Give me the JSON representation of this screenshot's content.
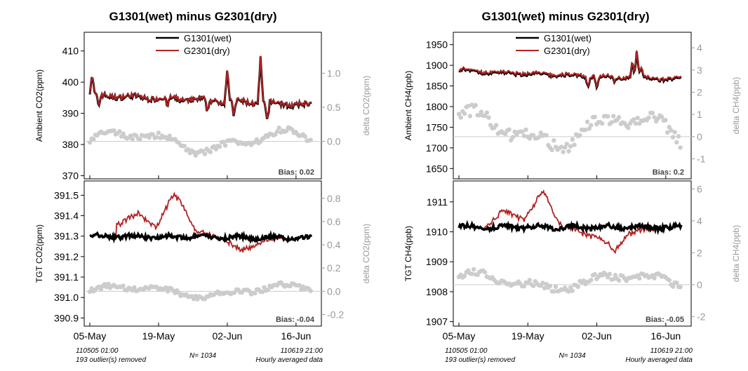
{
  "colors": {
    "wet": "#000000",
    "dry": "#b22222",
    "delta": "#cccccc",
    "zero_line": "#cccccc",
    "axis_right": "#999999",
    "axis_left": "#000000"
  },
  "x_axis": {
    "tick_labels": [
      "05-May",
      "19-May",
      "02-Jun",
      "16-Jun"
    ],
    "start_label": "110505 01:00",
    "end_label": "110619 21:00",
    "outliers_label": "193 outlier(s) removed",
    "n_label": "N= 1034",
    "averaging_label": "Hourly averaged data"
  },
  "figures": [
    {
      "title": "G1301(wet)  minus  G2301(dry)",
      "legend": {
        "wet": "G1301(wet)",
        "dry": "G2301(dry)"
      },
      "panels": [
        {
          "ylabel": "Ambient CO2(ppm)",
          "ylabel_right": "delta CO2(ppm)",
          "ylim": [
            369,
            416
          ],
          "yticks": [
            "370",
            "380",
            "390",
            "400",
            "410"
          ],
          "y2lim": [
            -0.55,
            1.6
          ],
          "y2ticks": [
            "0.0",
            "0.5",
            "1.0"
          ],
          "bias_label": "Bias: 0.02",
          "base": 395.8,
          "trend": -3.2,
          "noise": 0.8,
          "spikes": [
            [
              0.01,
              6.5
            ],
            [
              0.04,
              -4
            ],
            [
              0.35,
              -3
            ],
            [
              0.53,
              -4
            ],
            [
              0.62,
              11
            ],
            [
              0.65,
              -5
            ],
            [
              0.77,
              15
            ],
            [
              0.8,
              -6
            ]
          ],
          "dry_offset": 0.15,
          "dry_drift": [],
          "delta_base": 0.0,
          "delta_amp": 0.12,
          "delta_noise": 0.04
        },
        {
          "ylabel": "TGT CO2(ppm)",
          "ylabel_right": "delta CO2(ppm)",
          "ylim": [
            390.86,
            391.57
          ],
          "yticks": [
            "390.9",
            "391.0",
            "391.1",
            "391.2",
            "391.3",
            "391.4",
            "391.5"
          ],
          "y2lim": [
            -0.3,
            0.95
          ],
          "y2ticks": [
            "-0.2",
            "0.0",
            "0.2",
            "0.4",
            "0.6",
            "0.8"
          ],
          "bias_label": "Bias: -0.04",
          "base": 391.3,
          "trend": -0.01,
          "noise": 0.01,
          "spikes": [],
          "dry_offset": 0.0,
          "dry_drift": [
            [
              0.12,
              0.06
            ],
            [
              0.22,
              0.11
            ],
            [
              0.3,
              0.05
            ],
            [
              0.38,
              0.21
            ],
            [
              0.43,
              0.14
            ],
            [
              0.48,
              0.02
            ],
            [
              0.6,
              0.0
            ],
            [
              0.68,
              -0.07
            ],
            [
              0.76,
              -0.02
            ],
            [
              0.9,
              0.0
            ]
          ],
          "delta_base": 0.0,
          "delta_amp": 0.04,
          "delta_noise": 0.02
        }
      ]
    },
    {
      "title": "G1301(wet)  minus  G2301(dry)",
      "legend": {
        "wet": "G1301(wet)",
        "dry": "G2301(dry)"
      },
      "panels": [
        {
          "ylabel": "Ambient CH4(ppb)",
          "ylabel_right": "delta CH4(ppb)",
          "ylim": [
            1625,
            1980
          ],
          "yticks": [
            "1650",
            "1700",
            "1750",
            "1800",
            "1850",
            "1900",
            "1950"
          ],
          "y2lim": [
            -1.9,
            4.7
          ],
          "y2ticks": [
            "-1",
            "0",
            "1",
            "2",
            "3",
            "4"
          ],
          "bias_label": "Bias: 0.2",
          "base": 1885,
          "trend": -20,
          "noise": 4,
          "spikes": [
            [
              0.02,
              12
            ],
            [
              0.58,
              -25
            ],
            [
              0.62,
              -30
            ],
            [
              0.7,
              -12
            ],
            [
              0.78,
              40
            ],
            [
              0.8,
              65
            ],
            [
              0.82,
              25
            ]
          ],
          "dry_offset": 2,
          "dry_drift": [],
          "delta_base": 0.3,
          "delta_amp": 0.6,
          "delta_noise": 0.25
        },
        {
          "ylabel": "TGT CH4(ppb)",
          "ylabel_right": "delta CH4(ppb)",
          "ylim": [
            1906.85,
            1911.7
          ],
          "yticks": [
            "1907",
            "1908",
            "1909",
            "1910",
            "1911"
          ],
          "y2lim": [
            -2.6,
            6.5
          ],
          "y2ticks": [
            "-2",
            "0",
            "2",
            "4",
            "6"
          ],
          "bias_label": "Bias: -0.05",
          "base": 1910.15,
          "trend": 0.0,
          "noise": 0.08,
          "spikes": [],
          "dry_offset": 0.0,
          "dry_drift": [
            [
              0.1,
              0.0
            ],
            [
              0.2,
              0.5
            ],
            [
              0.3,
              0.3
            ],
            [
              0.38,
              1.2
            ],
            [
              0.42,
              0.6
            ],
            [
              0.47,
              0.0
            ],
            [
              0.62,
              -0.3
            ],
            [
              0.7,
              -0.8
            ],
            [
              0.76,
              -0.2
            ],
            [
              0.9,
              0.0
            ]
          ],
          "delta_base": 0.2,
          "delta_amp": 0.4,
          "delta_noise": 0.2
        }
      ]
    }
  ],
  "chart_data": [
    {
      "type": "line",
      "title": "G1301(wet)  minus  G2301(dry)",
      "panels": [
        {
          "ylabel": "Ambient CO2(ppm)",
          "ylabel_right": "delta CO2(ppm)",
          "series": [
            {
              "name": "G1301(wet)",
              "approx_level": 395
            },
            {
              "name": "G2301(dry)",
              "approx_level": 395
            }
          ],
          "bias": 0.02
        },
        {
          "ylabel": "TGT CO2(ppm)",
          "ylabel_right": "delta CO2(ppm)",
          "series": [
            {
              "name": "G1301(wet)",
              "approx_level": 391.3
            },
            {
              "name": "G2301(dry)",
              "approx_level": 391.3
            }
          ],
          "bias": -0.04
        }
      ]
    },
    {
      "type": "line",
      "title": "G1301(wet)  minus  G2301(dry)",
      "panels": [
        {
          "ylabel": "Ambient CH4(ppb)",
          "ylabel_right": "delta CH4(ppb)",
          "series": [
            {
              "name": "G1301(wet)",
              "approx_level": 1875
            },
            {
              "name": "G2301(dry)",
              "approx_level": 1875
            }
          ],
          "bias": 0.2
        },
        {
          "ylabel": "TGT CH4(ppb)",
          "ylabel_right": "delta CH4(ppb)",
          "series": [
            {
              "name": "G1301(wet)",
              "approx_level": 1910.1
            },
            {
              "name": "G2301(dry)",
              "approx_level": 1910.1
            }
          ],
          "bias": -0.05
        }
      ]
    }
  ]
}
